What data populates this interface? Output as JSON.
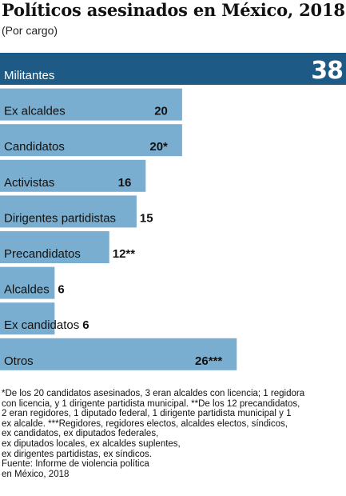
{
  "title": "Políticos asesinados en México, 2018",
  "subtitle": "(Por cargo)",
  "chart_data": {
    "type": "bar",
    "orientation": "horizontal",
    "categories": [
      "Militantes",
      "Ex alcaldes",
      "Candidatos",
      "Activistas",
      "Dirigentes partidistas",
      "Precandidatos",
      "Alcaldes",
      "Ex candidatos",
      "Otros"
    ],
    "values": [
      38,
      20,
      20,
      16,
      15,
      12,
      6,
      6,
      26
    ],
    "value_labels": [
      "38",
      "20",
      "20*",
      "16",
      "15",
      "12**",
      "6",
      "6",
      "26***"
    ],
    "colors": {
      "highlight": "#1e5a86",
      "bar": "#7aaed0"
    },
    "highlight_index": 0
  },
  "footnote": [
    "*De los 20 candidatos asesinados, 3 eran alcaldes con licencia; 1 regidora",
    "con licencia, y 1 dirigente partidista municipal. **De los 12 precandidatos,",
    "2 eran regidores, 1 diputado federal, 1 dirigente partidista municipal y 1",
    "ex alcalde. ***Regidores, regidores electos, alcaldes electos, síndicos,",
    "ex candidatos, ex diputados federales,",
    "ex diputados locales, ex alcaldes suplentes,",
    "ex dirigentes partidistas, ex síndicos.",
    "Fuente: Informe de violencia política",
    "en México, 2018"
  ]
}
